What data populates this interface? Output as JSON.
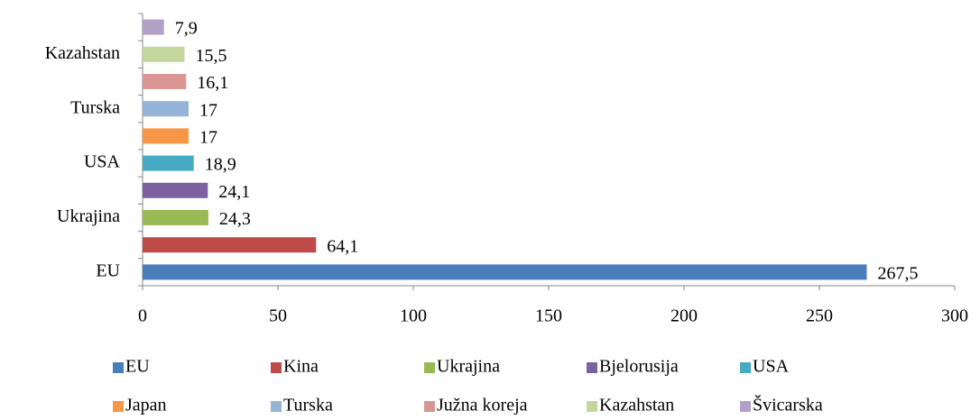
{
  "chart_data": {
    "type": "bar",
    "orientation": "horizontal",
    "categories": [
      "EU",
      null,
      "Ukrajina",
      null,
      "USA",
      null,
      "Turska",
      null,
      "Kazahstan",
      null
    ],
    "values": [
      267.5,
      64.1,
      24.3,
      24.1,
      18.9,
      17,
      17,
      16.1,
      15.5,
      7.9
    ],
    "value_labels": [
      "267,5",
      "64,1",
      "24,3",
      "24,1",
      "18,9",
      "17",
      "17",
      "16,1",
      "15,5",
      "7,9"
    ],
    "colors": [
      "#4a7ebb",
      "#be4b48",
      "#98b954",
      "#7d60a0",
      "#46aac5",
      "#f79646",
      "#95b3d7",
      "#d99694",
      "#c3d69b",
      "#b2a1c7"
    ],
    "xlim": [
      0,
      300
    ],
    "xticks": [
      0,
      50,
      100,
      150,
      200,
      250,
      300
    ],
    "grid": false,
    "legend": {
      "position": "bottom",
      "entries": [
        "EU",
        "Kina",
        "Ukrajina",
        "Bjelorusija",
        "USA",
        "Japan",
        "Turska",
        "Južna koreja",
        "Kazahstan",
        "Švicarska"
      ]
    }
  }
}
